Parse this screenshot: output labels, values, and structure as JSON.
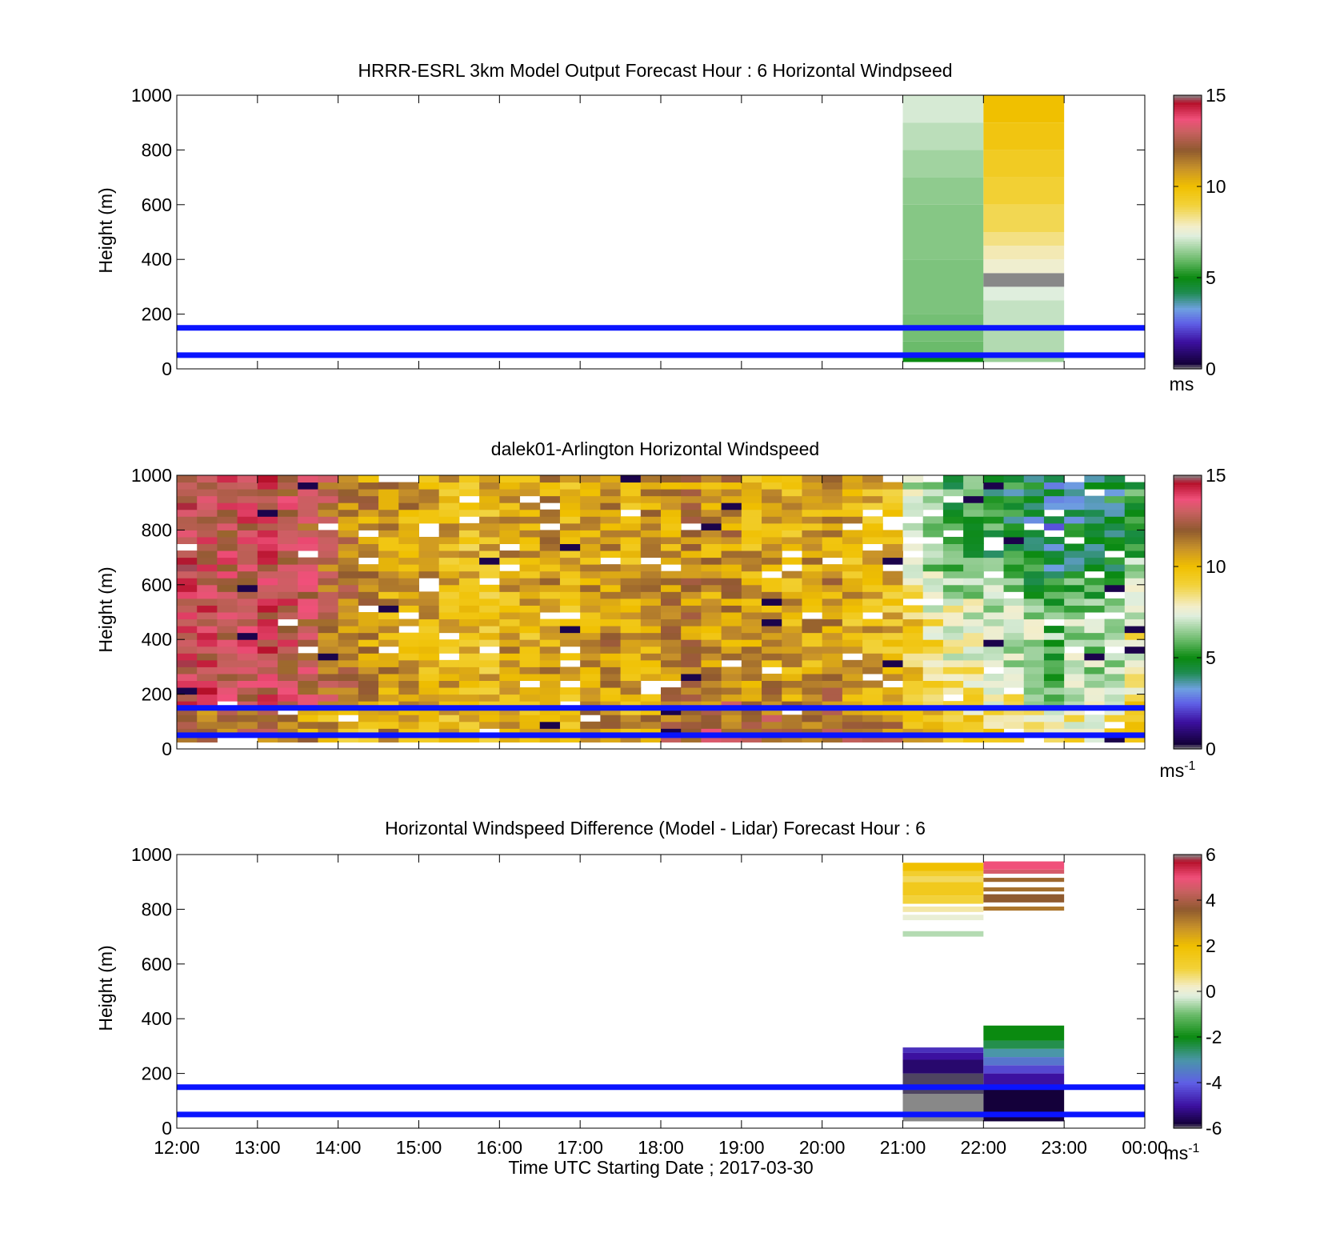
{
  "figure": {
    "xlabel": "Time UTC  Starting Date ; 2017-03-30",
    "time_ticks": [
      "12:00",
      "13:00",
      "14:00",
      "15:00",
      "16:00",
      "17:00",
      "18:00",
      "19:00",
      "20:00",
      "21:00",
      "22:00",
      "23:00",
      "00:00"
    ],
    "height_ticks": [
      "0",
      "200",
      "400",
      "600",
      "800",
      "1000"
    ],
    "ylabel": "Height (m)",
    "reference_lines_m": [
      50,
      150
    ],
    "reference_line_color": "#0a14ff",
    "colormaps": {
      "speed": [
        {
          "v": 0,
          "c": "#888888"
        },
        {
          "v": 0.3,
          "c": "#14003a"
        },
        {
          "v": 1.5,
          "c": "#3c10a0"
        },
        {
          "v": 2.5,
          "c": "#5f5fe6"
        },
        {
          "v": 3.3,
          "c": "#6ea0e0"
        },
        {
          "v": 4.2,
          "c": "#1e8c50"
        },
        {
          "v": 5,
          "c": "#0a8a10"
        },
        {
          "v": 6,
          "c": "#6bbb6b"
        },
        {
          "v": 7.3,
          "c": "#dfeedd"
        },
        {
          "v": 7.8,
          "c": "#f3eecc"
        },
        {
          "v": 9,
          "c": "#f2d23a"
        },
        {
          "v": 10,
          "c": "#f0c000"
        },
        {
          "v": 11,
          "c": "#c8922a"
        },
        {
          "v": 12,
          "c": "#8f5a2f"
        },
        {
          "v": 13,
          "c": "#c86060"
        },
        {
          "v": 13.7,
          "c": "#f0507a"
        },
        {
          "v": 14.6,
          "c": "#b5102a"
        },
        {
          "v": 15,
          "c": "#888888"
        }
      ],
      "difference": [
        {
          "v": -6,
          "c": "#888888"
        },
        {
          "v": -5.8,
          "c": "#14003a"
        },
        {
          "v": -5,
          "c": "#3c10a0"
        },
        {
          "v": -4,
          "c": "#5f5fe6"
        },
        {
          "v": -3,
          "c": "#4a96a8"
        },
        {
          "v": -2,
          "c": "#0a8a10"
        },
        {
          "v": -1,
          "c": "#6bbb6b"
        },
        {
          "v": -0.2,
          "c": "#dfeedd"
        },
        {
          "v": 0.2,
          "c": "#f3eecc"
        },
        {
          "v": 1,
          "c": "#f2d23a"
        },
        {
          "v": 2,
          "c": "#f0c000"
        },
        {
          "v": 2.8,
          "c": "#c8922a"
        },
        {
          "v": 3.6,
          "c": "#8f5a2f"
        },
        {
          "v": 4.4,
          "c": "#c86060"
        },
        {
          "v": 5,
          "c": "#f0507a"
        },
        {
          "v": 5.7,
          "c": "#b5102a"
        },
        {
          "v": 6,
          "c": "#888888"
        }
      ]
    }
  },
  "panels": [
    {
      "title": "HRRR-ESRL 3km Model Output   Forecast Hour : 6 Horizontal Windpseed",
      "colorbar_ticks": [
        "0",
        "5",
        "10",
        "15"
      ],
      "colorbar_unit": "ms",
      "colorbar_exp": ""
    },
    {
      "title": "dalek01-Arlington  Horizontal Windspeed",
      "colorbar_ticks": [
        "0",
        "5",
        "10",
        "15"
      ],
      "colorbar_unit": "ms",
      "colorbar_exp": "-1"
    },
    {
      "title": "Horizontal Windspeed Difference (Model - Lidar) Forecast Hour : 6",
      "colorbar_ticks": [
        "-6",
        "-4",
        "-2",
        "0",
        "2",
        "4",
        "6"
      ],
      "colorbar_unit": "ms",
      "colorbar_exp": "-1"
    }
  ],
  "chart_data": [
    {
      "type": "heatmap",
      "title": "HRRR-ESRL 3km Model Output   Forecast Hour : 6 Horizontal Windpseed",
      "xlabel": "",
      "ylabel": "Height (m)",
      "xlim_hours_utc": [
        12,
        24
      ],
      "ylim": [
        0,
        1000
      ],
      "zlim": [
        0,
        15
      ],
      "unit": "ms",
      "columns": [
        {
          "t0": 21,
          "t1": 22,
          "bins": [
            {
              "h0": 25,
              "h1": 45,
              "v": 5.0
            },
            {
              "h0": 45,
              "h1": 100,
              "v": 6.0
            },
            {
              "h0": 100,
              "h1": 200,
              "v": 6.1
            },
            {
              "h0": 200,
              "h1": 400,
              "v": 6.2
            },
            {
              "h0": 400,
              "h1": 600,
              "v": 6.3
            },
            {
              "h0": 600,
              "h1": 700,
              "v": 6.4
            },
            {
              "h0": 700,
              "h1": 800,
              "v": 6.6
            },
            {
              "h0": 800,
              "h1": 900,
              "v": 6.9
            },
            {
              "h0": 900,
              "h1": 1000,
              "v": 7.2
            }
          ]
        },
        {
          "t0": 22,
          "t1": 23,
          "bins": [
            {
              "h0": 25,
              "h1": 60,
              "v": 6.5
            },
            {
              "h0": 60,
              "h1": 150,
              "v": 6.8
            },
            {
              "h0": 150,
              "h1": 250,
              "v": 7.0
            },
            {
              "h0": 250,
              "h1": 300,
              "v": 7.3
            },
            {
              "h0": 300,
              "h1": 350,
              "v": 0.0
            },
            {
              "h0": 350,
              "h1": 400,
              "v": 7.7
            },
            {
              "h0": 400,
              "h1": 450,
              "v": 8.0
            },
            {
              "h0": 450,
              "h1": 500,
              "v": 8.4
            },
            {
              "h0": 500,
              "h1": 600,
              "v": 8.8
            },
            {
              "h0": 600,
              "h1": 700,
              "v": 9.1
            },
            {
              "h0": 700,
              "h1": 800,
              "v": 9.4
            },
            {
              "h0": 800,
              "h1": 900,
              "v": 9.7
            },
            {
              "h0": 900,
              "h1": 1000,
              "v": 10.0
            }
          ]
        }
      ],
      "reference_lines_m": [
        50,
        150
      ]
    },
    {
      "type": "heatmap",
      "title": "dalek01-Arlington  Horizontal Windspeed",
      "xlabel": "",
      "ylabel": "Height (m)",
      "xlim_hours_utc": [
        12,
        24
      ],
      "ylim": [
        0,
        1000
      ],
      "zlim": [
        0,
        15
      ],
      "unit": "ms-1",
      "start_hour_utc": 12,
      "column_width_hours": 0.25,
      "height_bin_m": 25,
      "height_range_m": [
        25,
        1000
      ],
      "column_mean_speed": [
        13.5,
        13.3,
        13.0,
        13.2,
        13.4,
        13.0,
        12.5,
        12.0,
        11.5,
        11.0,
        10.8,
        10.7,
        10.5,
        10.2,
        10.0,
        10.0,
        10.5,
        10.3,
        10.6,
        10.2,
        10.8,
        11.0,
        10.5,
        10.8,
        10.9,
        11.2,
        10.9,
        11.0,
        10.5,
        10.7,
        10.4,
        10.6,
        10.9,
        10.3,
        10.2,
        10.0,
        9.5,
        8.5,
        8.0,
        7.8,
        7.5,
        7.2,
        6.8,
        6.0,
        6.8,
        6.5,
        7.0,
        8.0
      ],
      "note_vertical_structure": "near-surface layer (0-200 m) faster than aloft in 18:00-24:00 columns; upper levels (>600 m) drop to 5-7 ms-1 after 21:00",
      "missing_data": "white gaps",
      "reference_lines_m": [
        50,
        150
      ]
    },
    {
      "type": "heatmap",
      "title": "Horizontal Windspeed Difference (Model - Lidar) Forecast Hour : 6",
      "xlabel": "Time UTC  Starting Date ; 2017-03-30",
      "ylabel": "Height (m)",
      "xlim_hours_utc": [
        12,
        24
      ],
      "ylim": [
        0,
        1000
      ],
      "zlim": [
        -6,
        6
      ],
      "unit": "ms-1",
      "columns": [
        {
          "t0": 21,
          "t1": 22,
          "bins": [
            {
              "h0": 25,
              "h1": 125,
              "v": -6.0
            },
            {
              "h0": 125,
              "h1": 200,
              "v": -5.9
            },
            {
              "h0": 200,
              "h1": 250,
              "v": -5.4
            },
            {
              "h0": 250,
              "h1": 275,
              "v": -5.0
            },
            {
              "h0": 275,
              "h1": 295,
              "v": -4.6
            },
            {
              "h0": 700,
              "h1": 720,
              "v": -0.5
            },
            {
              "h0": 760,
              "h1": 780,
              "v": 0.0
            },
            {
              "h0": 790,
              "h1": 810,
              "v": 0.4
            },
            {
              "h0": 820,
              "h1": 850,
              "v": 1.0
            },
            {
              "h0": 850,
              "h1": 900,
              "v": 1.5
            },
            {
              "h0": 900,
              "h1": 920,
              "v": 0.8
            },
            {
              "h0": 920,
              "h1": 940,
              "v": 1.2
            },
            {
              "h0": 940,
              "h1": 970,
              "v": 2.0
            }
          ]
        },
        {
          "t0": 22,
          "t1": 23,
          "bins": [
            {
              "h0": 25,
              "h1": 150,
              "v": -5.8
            },
            {
              "h0": 150,
              "h1": 200,
              "v": -5.0
            },
            {
              "h0": 200,
              "h1": 230,
              "v": -4.3
            },
            {
              "h0": 230,
              "h1": 260,
              "v": -3.6
            },
            {
              "h0": 260,
              "h1": 290,
              "v": -3.0
            },
            {
              "h0": 290,
              "h1": 320,
              "v": -2.4
            },
            {
              "h0": 320,
              "h1": 375,
              "v": -2.0
            },
            {
              "h0": 795,
              "h1": 810,
              "v": 3.2
            },
            {
              "h0": 825,
              "h1": 855,
              "v": 3.6
            },
            {
              "h0": 865,
              "h1": 880,
              "v": 3.3
            },
            {
              "h0": 900,
              "h1": 915,
              "v": 3.4
            },
            {
              "h0": 930,
              "h1": 945,
              "v": 4.6
            },
            {
              "h0": 945,
              "h1": 975,
              "v": 5.0
            }
          ]
        }
      ],
      "reference_lines_m": [
        50,
        150
      ]
    }
  ]
}
